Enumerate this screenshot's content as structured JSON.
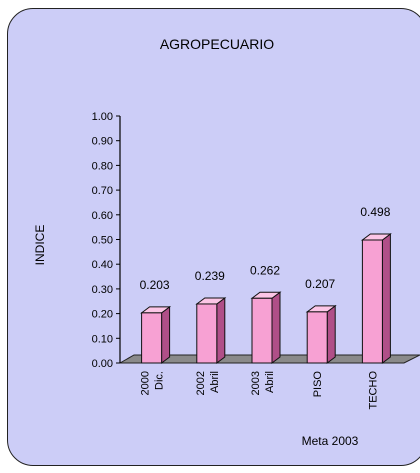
{
  "chart_data": {
    "type": "bar",
    "title": "AGROPECUARIO",
    "ylabel": "INDICE",
    "xlabel": "Meta 2003",
    "categories": [
      [
        "2000",
        "Dic."
      ],
      [
        "2002",
        "Abril"
      ],
      [
        "2003",
        "Abril"
      ],
      [
        "PISO"
      ],
      [
        "TECHO"
      ]
    ],
    "values": [
      0.203,
      0.239,
      0.262,
      0.207,
      0.498
    ],
    "data_labels": [
      "0.203",
      "0.239",
      "0.262",
      "0.207",
      "0.498"
    ],
    "yticks": [
      "0.00",
      "0.10",
      "0.20",
      "0.30",
      "0.40",
      "0.50",
      "0.60",
      "0.70",
      "0.80",
      "0.90",
      "1.00"
    ],
    "ylim": [
      0,
      1
    ],
    "grid": false,
    "legend": "none",
    "colors": {
      "panel": "#cccdf7",
      "bar_front": "#f7a1d3",
      "bar_side": "#b04f88",
      "bar_top": "#fcc6e6",
      "floor": "#8a8a8a"
    }
  }
}
